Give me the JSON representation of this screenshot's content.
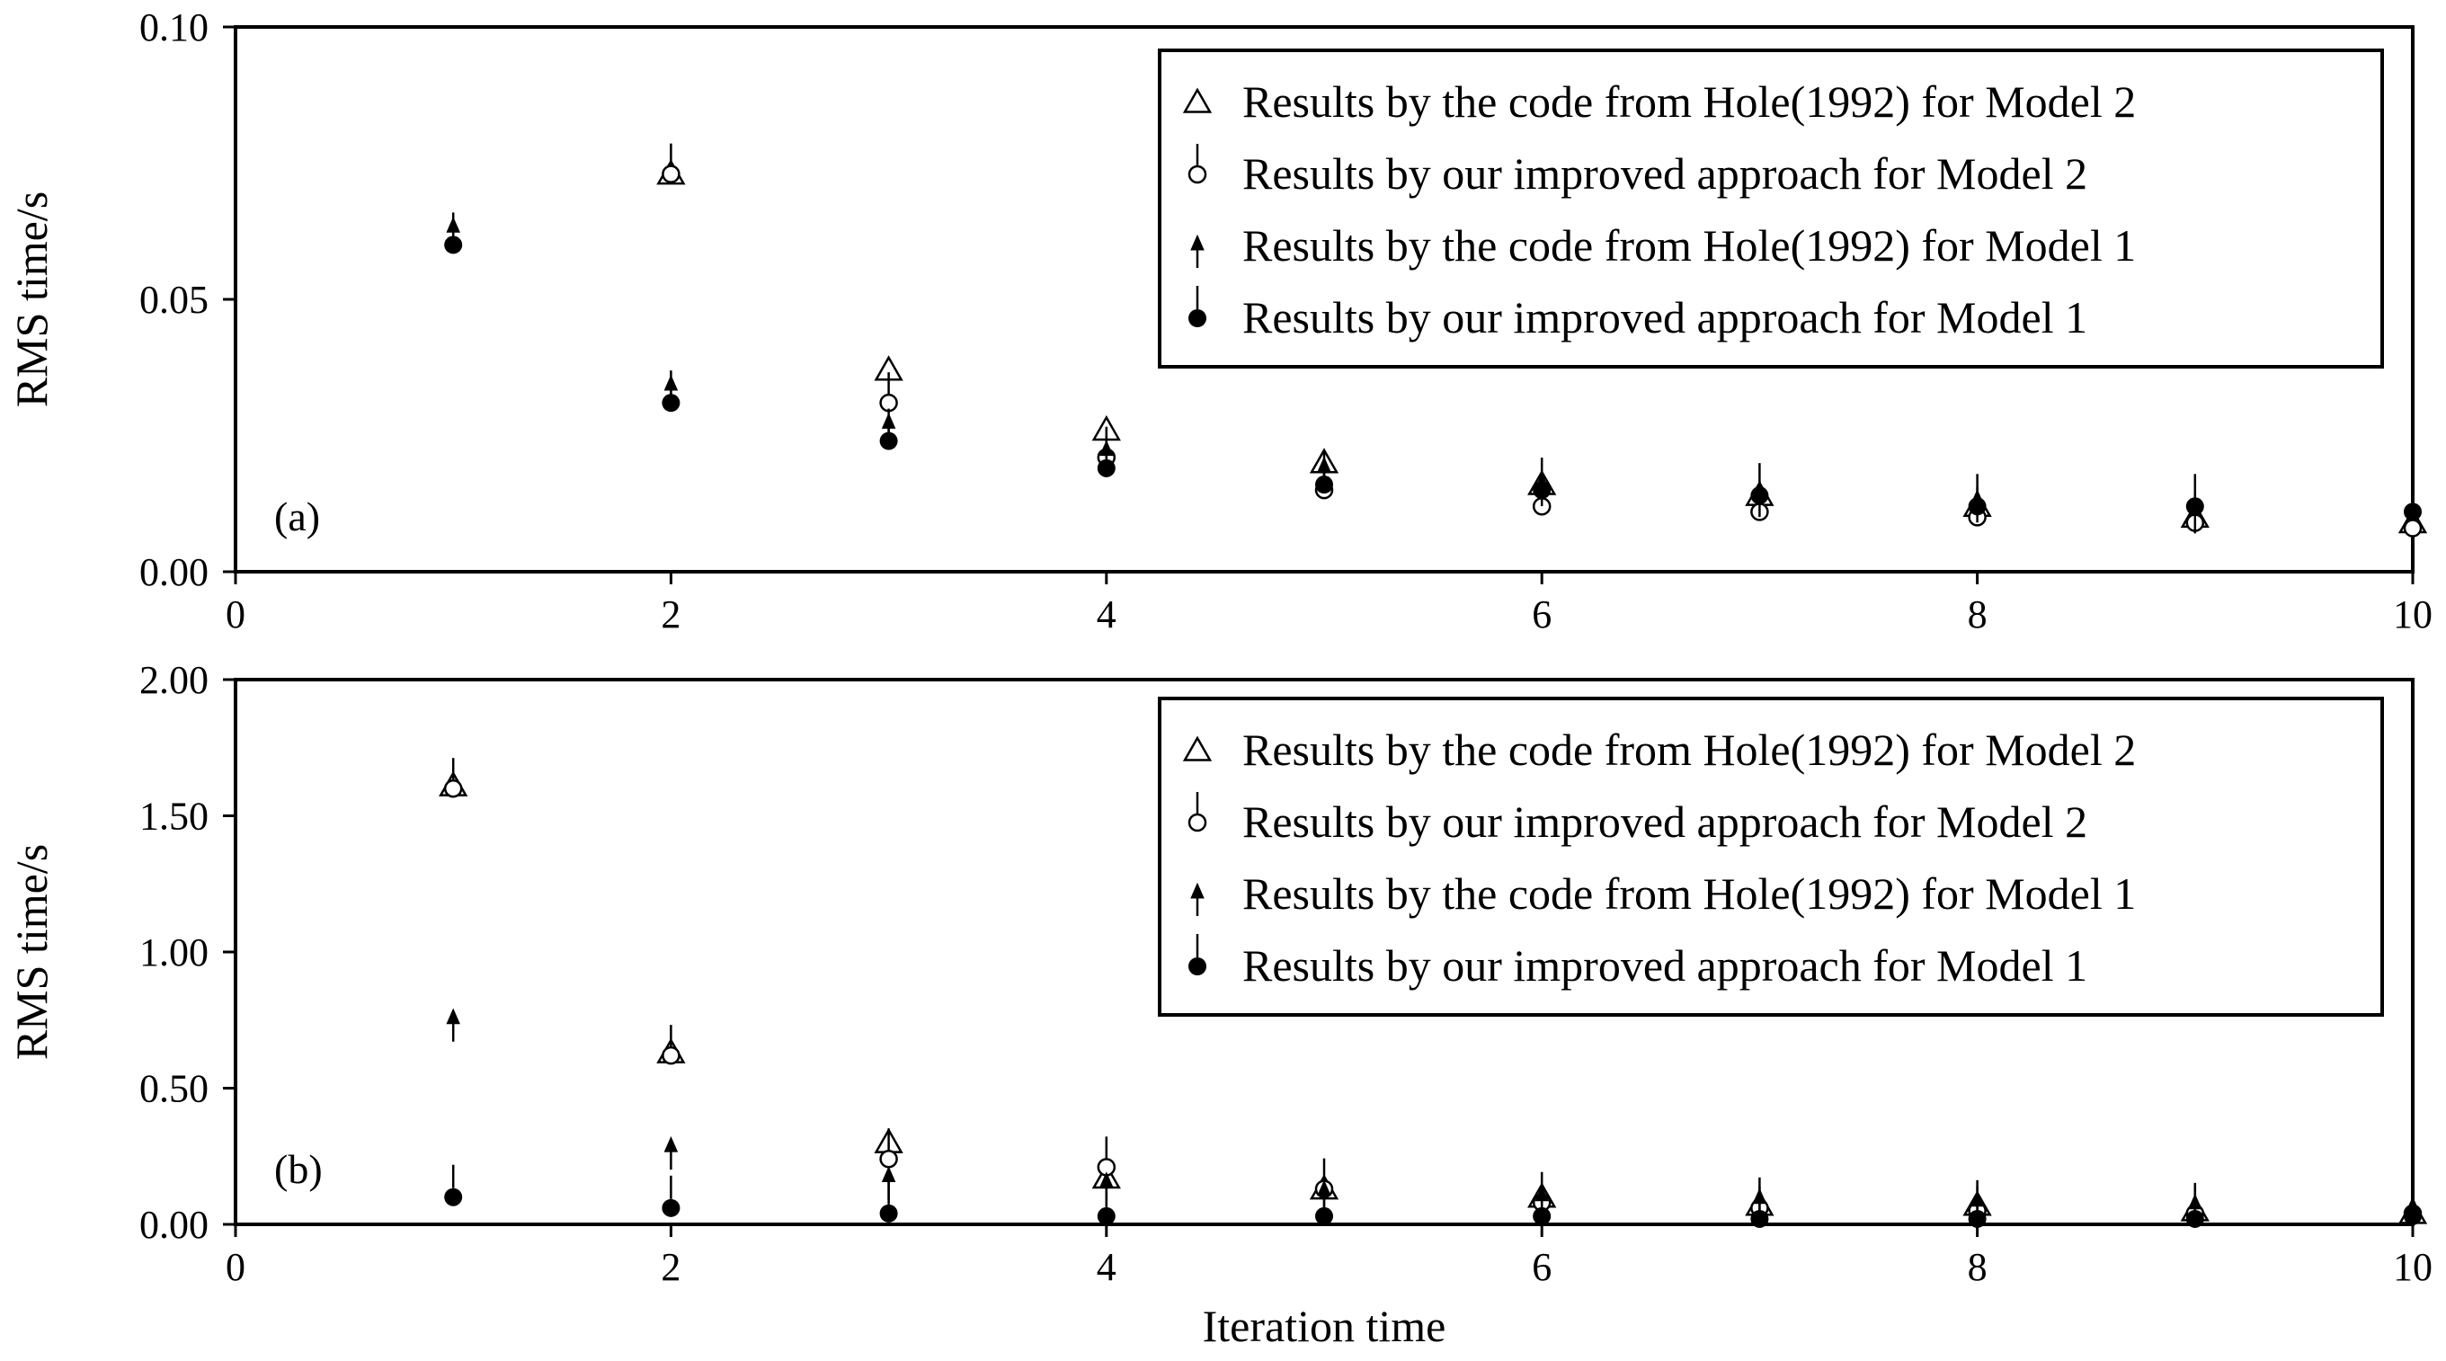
{
  "figure": {
    "xlabel": "Iteration time"
  },
  "chart_data": [
    {
      "type": "scatter",
      "panel_label": "(a)",
      "title": "",
      "xlabel": "",
      "ylabel": "RMS time/s",
      "xlim": [
        0,
        10
      ],
      "ylim": [
        0,
        0.1
      ],
      "xticks": [
        "0",
        "2",
        "4",
        "6",
        "8",
        "10"
      ],
      "yticks": [
        "0.00",
        "0.05",
        "0.10"
      ],
      "legend_position": "top-right",
      "grid": false,
      "series": [
        {
          "name": "Results by the code from Hole(1992) for Model 2",
          "marker": "open-triangle",
          "x": [
            2,
            3,
            4,
            5,
            6,
            7,
            8,
            9,
            10
          ],
          "y": [
            0.073,
            0.037,
            0.026,
            0.02,
            0.016,
            0.014,
            0.012,
            0.01,
            0.009
          ]
        },
        {
          "name": "Results by our improved approach for Model 2",
          "marker": "open-circle-bar",
          "x": [
            2,
            3,
            4,
            5,
            6,
            7,
            8,
            9,
            10
          ],
          "y": [
            0.073,
            0.031,
            0.021,
            0.015,
            0.012,
            0.011,
            0.01,
            0.009,
            0.008
          ]
        },
        {
          "name": "Results by the code from Hole(1992) for Model 1",
          "marker": "filled-arrow",
          "x": [
            1,
            2,
            3,
            4,
            5,
            6,
            7,
            8,
            9
          ],
          "y": [
            0.063,
            0.034,
            0.027,
            0.022,
            0.019,
            0.016,
            0.014,
            0.013,
            0.011
          ]
        },
        {
          "name": "Results by our improved approach for Model 1",
          "marker": "filled-circle-bar",
          "x": [
            1,
            2,
            3,
            4,
            5,
            6,
            7,
            8,
            9,
            10
          ],
          "y": [
            0.06,
            0.031,
            0.024,
            0.019,
            0.016,
            0.015,
            0.014,
            0.012,
            0.012,
            0.011
          ]
        }
      ]
    },
    {
      "type": "scatter",
      "panel_label": "(b)",
      "title": "",
      "xlabel": "Iteration time",
      "ylabel": "RMS time/s",
      "xlim": [
        0,
        10
      ],
      "ylim": [
        0,
        2
      ],
      "xticks": [
        "0",
        "2",
        "4",
        "6",
        "8",
        "10"
      ],
      "yticks": [
        "0.00",
        "0.50",
        "1.00",
        "1.50",
        "2.00"
      ],
      "legend_position": "top-right",
      "grid": false,
      "series": [
        {
          "name": "Results by the code from Hole(1992) for Model 2",
          "marker": "open-triangle",
          "x": [
            1,
            2,
            3,
            4,
            5,
            6,
            7,
            8,
            9,
            10
          ],
          "y": [
            1.61,
            0.63,
            0.3,
            0.17,
            0.13,
            0.1,
            0.07,
            0.07,
            0.05,
            0.04
          ]
        },
        {
          "name": "Results by our improved approach for Model 2",
          "marker": "open-circle-bar",
          "x": [
            1,
            2,
            3,
            4,
            5,
            6,
            7,
            8,
            9,
            10
          ],
          "y": [
            1.6,
            0.62,
            0.24,
            0.21,
            0.13,
            0.08,
            0.06,
            0.05,
            0.04,
            0.04
          ]
        },
        {
          "name": "Results by the code from Hole(1992) for Model 1",
          "marker": "filled-arrow",
          "x": [
            1,
            2,
            3,
            4,
            5,
            6,
            7,
            8,
            9,
            10
          ],
          "y": [
            0.75,
            0.28,
            0.17,
            0.15,
            0.12,
            0.1,
            0.09,
            0.08,
            0.07,
            0.06
          ]
        },
        {
          "name": "Results by our improved approach for Model 1",
          "marker": "filled-circle-bar",
          "x": [
            1,
            2,
            3,
            4,
            5,
            6,
            7,
            8,
            9,
            10
          ],
          "y": [
            0.1,
            0.06,
            0.04,
            0.03,
            0.03,
            0.03,
            0.02,
            0.02,
            0.02,
            0.03
          ]
        }
      ]
    }
  ]
}
